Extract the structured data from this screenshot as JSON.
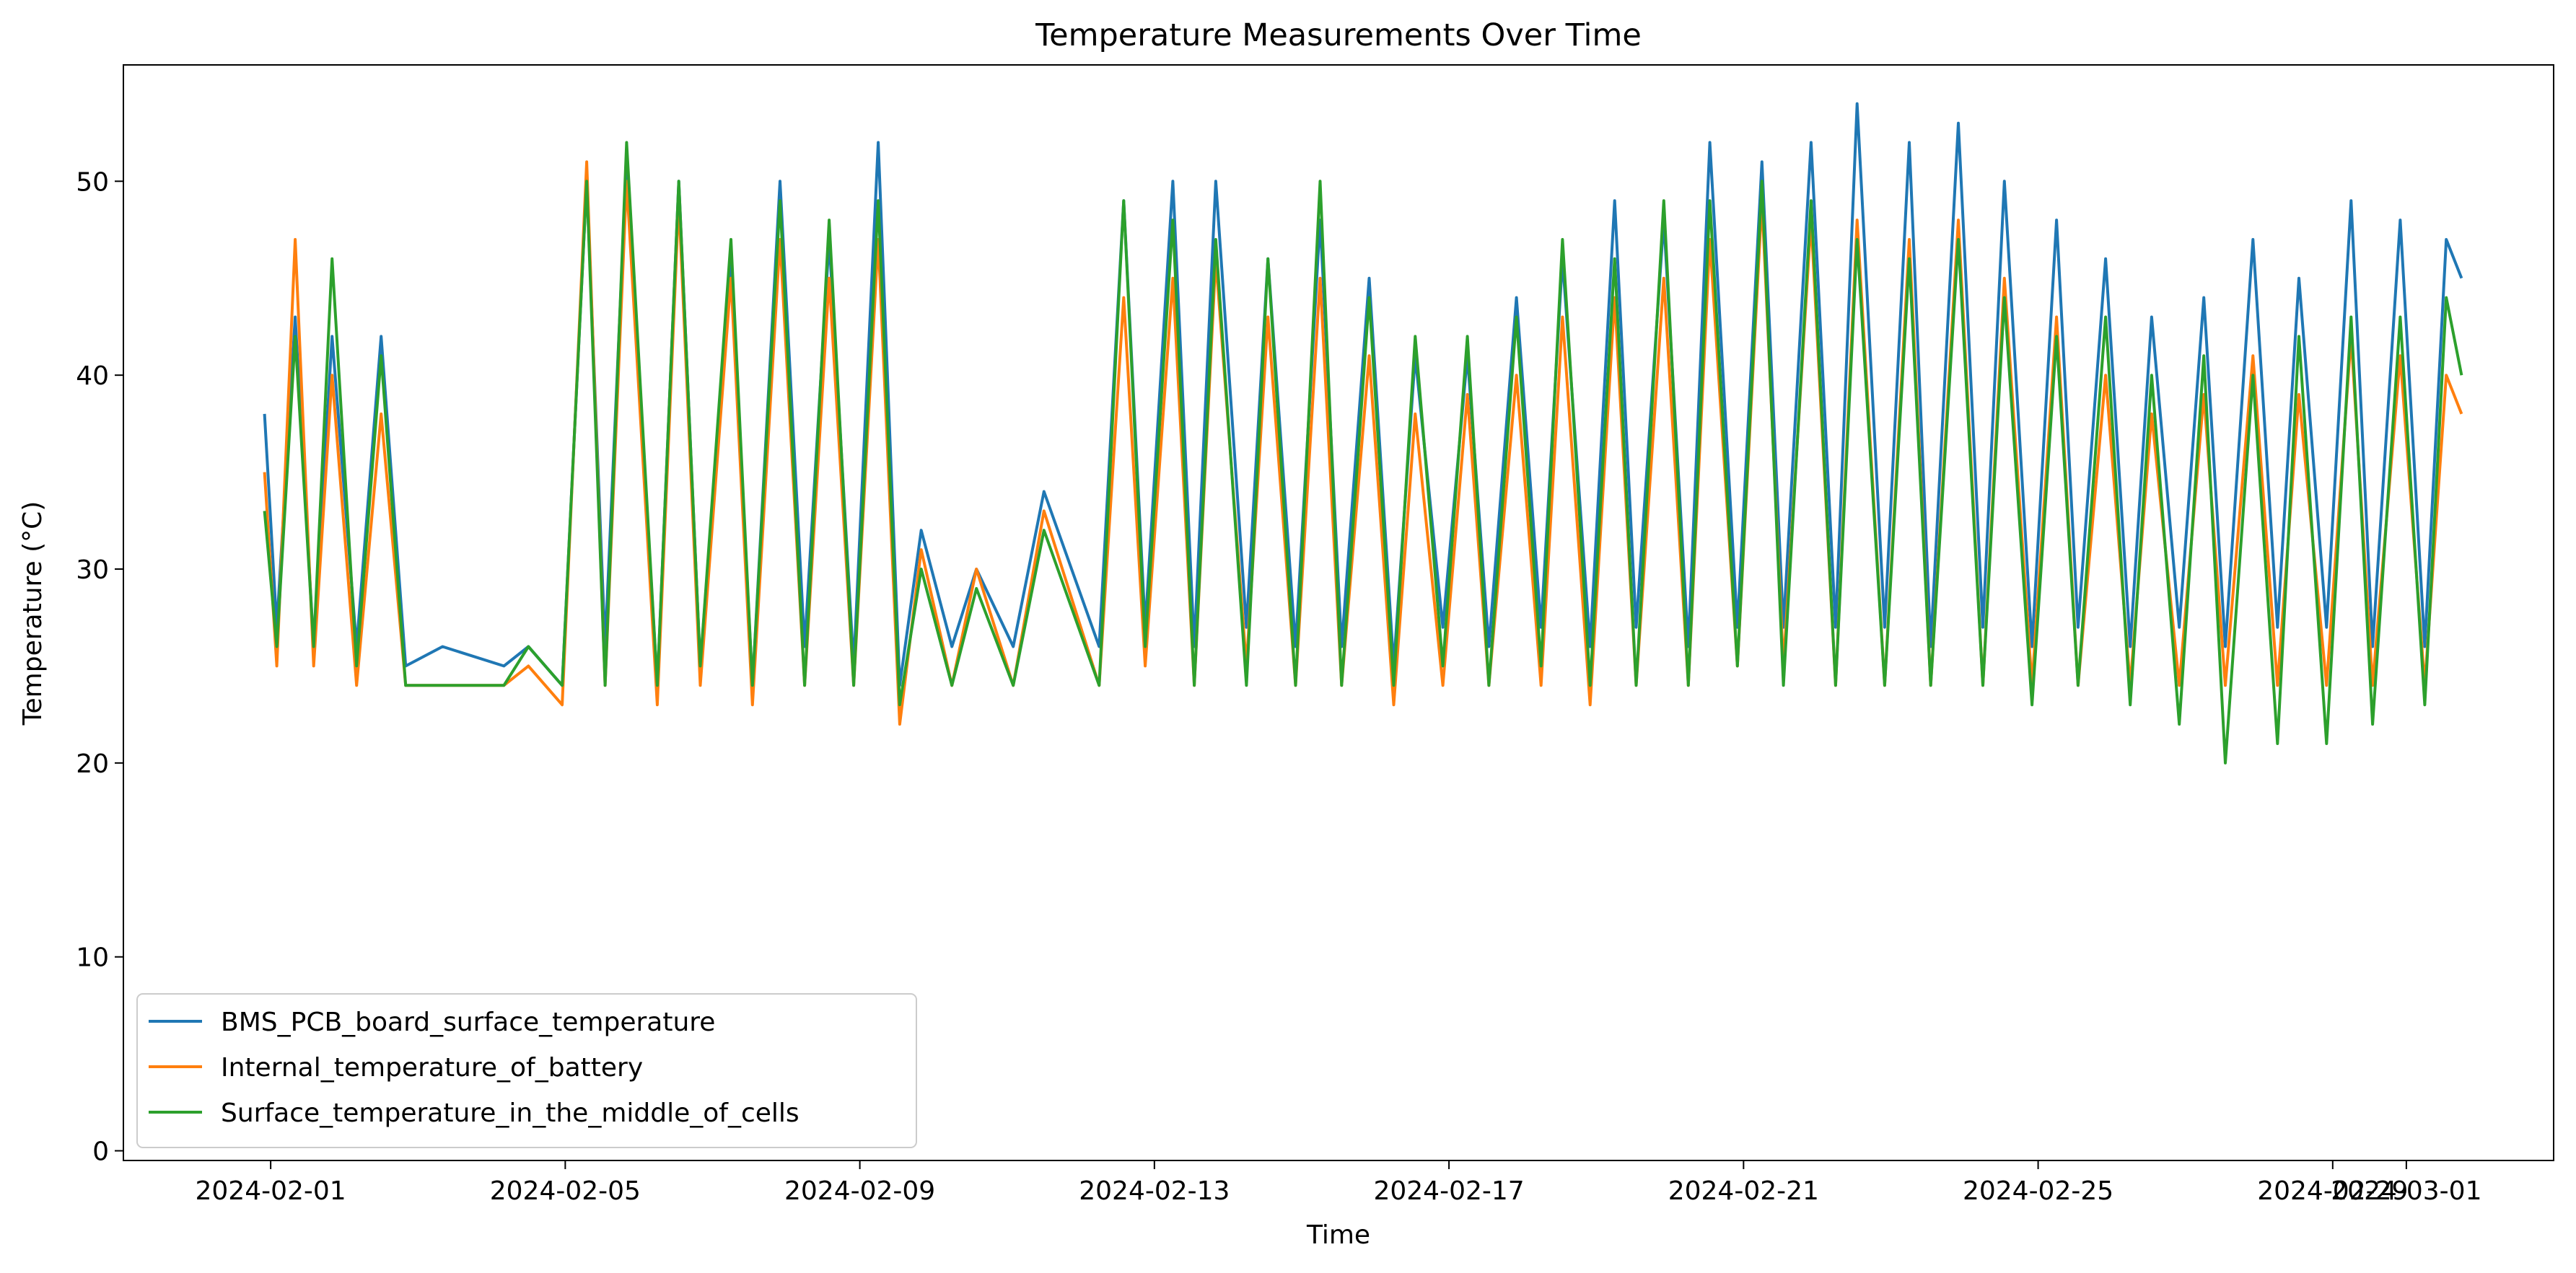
{
  "chart_data": {
    "type": "line",
    "title": "Temperature Measurements Over Time",
    "xlabel": "Time",
    "ylabel": "Temperature (°C)",
    "x_range": [
      "2024-01-30",
      "2024-03-03"
    ],
    "ylim": [
      -0.5,
      56
    ],
    "x_ticks": [
      {
        "date": "2024-02-01",
        "label": "2024-02-01"
      },
      {
        "date": "2024-02-05",
        "label": "2024-02-05"
      },
      {
        "date": "2024-02-09",
        "label": "2024-02-09"
      },
      {
        "date": "2024-02-13",
        "label": "2024-02-13"
      },
      {
        "date": "2024-02-17",
        "label": "2024-02-17"
      },
      {
        "date": "2024-02-21",
        "label": "2024-02-21"
      },
      {
        "date": "2024-02-25",
        "label": "2024-02-25"
      },
      {
        "date": "2024-02-29",
        "label": "2024-02-29"
      },
      {
        "date": "2024-03-01",
        "label": "2024-03-01"
      }
    ],
    "y_ticks": [
      0,
      10,
      20,
      30,
      40,
      50
    ],
    "grid": false,
    "legend_position": "lower-left",
    "colors": {
      "BMS_PCB_board_surface_temperature": "#1f77b4",
      "Internal_temperature_of_battery": "#ff7f0e",
      "Surface_temperature_in_the_middle_of_cells": "#2ca02c"
    },
    "series": [
      {
        "name": "BMS_PCB_board_surface_temperature",
        "x": [
          "2024-01-31 22:00",
          "2024-02-01 02:00",
          "2024-02-01 08:00",
          "2024-02-01 14:00",
          "2024-02-01 20:00",
          "2024-02-02 04:00",
          "2024-02-02 12:00",
          "2024-02-02 20:00",
          "2024-02-03 08:00",
          "2024-02-04 04:00",
          "2024-02-04 12:00",
          "2024-02-04 23:00",
          "2024-02-05 07:00",
          "2024-02-05 13:00",
          "2024-02-05 20:00",
          "2024-02-06 06:00",
          "2024-02-06 13:00",
          "2024-02-06 20:00",
          "2024-02-07 06:00",
          "2024-02-07 13:00",
          "2024-02-07 22:00",
          "2024-02-08 06:00",
          "2024-02-08 14:00",
          "2024-02-08 22:00",
          "2024-02-09 06:00",
          "2024-02-09 13:00",
          "2024-02-09 20:00",
          "2024-02-10 06:00",
          "2024-02-10 14:00",
          "2024-02-11 02:00",
          "2024-02-11 12:00",
          "2024-02-12 06:00",
          "2024-02-12 14:00",
          "2024-02-12 21:00",
          "2024-02-13 06:00",
          "2024-02-13 13:00",
          "2024-02-13 20:00",
          "2024-02-14 06:00",
          "2024-02-14 13:00",
          "2024-02-14 22:00",
          "2024-02-15 06:00",
          "2024-02-15 13:00",
          "2024-02-15 22:00",
          "2024-02-16 06:00",
          "2024-02-16 13:00",
          "2024-02-16 22:00",
          "2024-02-17 06:00",
          "2024-02-17 13:00",
          "2024-02-17 22:00",
          "2024-02-18 06:00",
          "2024-02-18 13:00",
          "2024-02-18 22:00",
          "2024-02-19 06:00",
          "2024-02-19 13:00",
          "2024-02-19 22:00",
          "2024-02-20 06:00",
          "2024-02-20 13:00",
          "2024-02-20 22:00",
          "2024-02-21 06:00",
          "2024-02-21 13:00",
          "2024-02-21 22:00",
          "2024-02-22 06:00",
          "2024-02-22 13:00",
          "2024-02-22 22:00",
          "2024-02-23 06:00",
          "2024-02-23 13:00",
          "2024-02-23 22:00",
          "2024-02-24 06:00",
          "2024-02-24 13:00",
          "2024-02-24 22:00",
          "2024-02-25 06:00",
          "2024-02-25 13:00",
          "2024-02-25 22:00",
          "2024-02-26 06:00",
          "2024-02-26 13:00",
          "2024-02-26 22:00",
          "2024-02-27 06:00",
          "2024-02-27 13:00",
          "2024-02-27 22:00",
          "2024-02-28 06:00",
          "2024-02-28 13:00",
          "2024-02-28 22:00",
          "2024-02-29 06:00",
          "2024-02-29 13:00",
          "2024-02-29 22:00",
          "2024-03-01 06:00",
          "2024-03-01 13:00",
          "2024-03-01 18:00"
        ],
        "y": [
          38,
          27,
          43,
          26,
          42,
          26,
          42,
          25,
          26,
          25,
          26,
          24,
          50,
          26,
          51,
          24,
          50,
          25,
          46,
          24,
          50,
          26,
          47,
          25,
          52,
          24,
          32,
          26,
          30,
          26,
          34,
          26,
          49,
          27,
          50,
          26,
          50,
          27,
          46,
          26,
          48,
          26,
          45,
          25,
          41,
          27,
          41,
          26,
          44,
          27,
          46,
          26,
          49,
          27,
          48,
          26,
          52,
          27,
          51,
          27,
          52,
          27,
          54,
          27,
          52,
          26,
          53,
          27,
          50,
          26,
          48,
          27,
          46,
          26,
          43,
          27,
          44,
          26,
          47,
          27,
          45,
          27,
          49,
          26,
          48,
          26,
          47,
          45
        ]
      },
      {
        "name": "Internal_temperature_of_battery",
        "x": [
          "2024-01-31 22:00",
          "2024-02-01 02:00",
          "2024-02-01 08:00",
          "2024-02-01 14:00",
          "2024-02-01 20:00",
          "2024-02-02 04:00",
          "2024-02-02 12:00",
          "2024-02-02 20:00",
          "2024-02-03 08:00",
          "2024-02-04 04:00",
          "2024-02-04 12:00",
          "2024-02-04 23:00",
          "2024-02-05 07:00",
          "2024-02-05 13:00",
          "2024-02-05 20:00",
          "2024-02-06 06:00",
          "2024-02-06 13:00",
          "2024-02-06 20:00",
          "2024-02-07 06:00",
          "2024-02-07 13:00",
          "2024-02-07 22:00",
          "2024-02-08 06:00",
          "2024-02-08 14:00",
          "2024-02-08 22:00",
          "2024-02-09 06:00",
          "2024-02-09 13:00",
          "2024-02-09 20:00",
          "2024-02-10 06:00",
          "2024-02-10 14:00",
          "2024-02-11 02:00",
          "2024-02-11 12:00",
          "2024-02-12 06:00",
          "2024-02-12 14:00",
          "2024-02-12 21:00",
          "2024-02-13 06:00",
          "2024-02-13 13:00",
          "2024-02-13 20:00",
          "2024-02-14 06:00",
          "2024-02-14 13:00",
          "2024-02-14 22:00",
          "2024-02-15 06:00",
          "2024-02-15 13:00",
          "2024-02-15 22:00",
          "2024-02-16 06:00",
          "2024-02-16 13:00",
          "2024-02-16 22:00",
          "2024-02-17 06:00",
          "2024-02-17 13:00",
          "2024-02-17 22:00",
          "2024-02-18 06:00",
          "2024-02-18 13:00",
          "2024-02-18 22:00",
          "2024-02-19 06:00",
          "2024-02-19 13:00",
          "2024-02-19 22:00",
          "2024-02-20 06:00",
          "2024-02-20 13:00",
          "2024-02-20 22:00",
          "2024-02-21 06:00",
          "2024-02-21 13:00",
          "2024-02-21 22:00",
          "2024-02-22 06:00",
          "2024-02-22 13:00",
          "2024-02-22 22:00",
          "2024-02-23 06:00",
          "2024-02-23 13:00",
          "2024-02-23 22:00",
          "2024-02-24 06:00",
          "2024-02-24 13:00",
          "2024-02-24 22:00",
          "2024-02-25 06:00",
          "2024-02-25 13:00",
          "2024-02-25 22:00",
          "2024-02-26 06:00",
          "2024-02-26 13:00",
          "2024-02-26 22:00",
          "2024-02-27 06:00",
          "2024-02-27 13:00",
          "2024-02-27 22:00",
          "2024-02-28 06:00",
          "2024-02-28 13:00",
          "2024-02-28 22:00",
          "2024-02-29 06:00",
          "2024-02-29 13:00",
          "2024-02-29 22:00",
          "2024-03-01 06:00",
          "2024-03-01 13:00",
          "2024-03-01 18:00"
        ],
        "y": [
          35,
          25,
          47,
          25,
          40,
          24,
          38,
          24,
          24,
          24,
          25,
          23,
          51,
          24,
          50,
          23,
          49,
          24,
          45,
          23,
          47,
          24,
          45,
          24,
          47,
          22,
          31,
          24,
          30,
          24,
          33,
          24,
          44,
          25,
          45,
          24,
          46,
          25,
          43,
          24,
          45,
          24,
          41,
          23,
          38,
          24,
          39,
          24,
          40,
          24,
          43,
          23,
          44,
          24,
          45,
          24,
          47,
          25,
          49,
          25,
          48,
          24,
          48,
          24,
          47,
          24,
          48,
          24,
          45,
          24,
          43,
          24,
          40,
          24,
          38,
          24,
          39,
          24,
          41,
          24,
          39,
          24,
          42,
          24,
          41,
          24,
          40,
          38
        ]
      },
      {
        "name": "Surface_temperature_in_the_middle_of_cells",
        "x": [
          "2024-01-31 22:00",
          "2024-02-01 02:00",
          "2024-02-01 08:00",
          "2024-02-01 14:00",
          "2024-02-01 20:00",
          "2024-02-02 04:00",
          "2024-02-02 12:00",
          "2024-02-02 20:00",
          "2024-02-03 08:00",
          "2024-02-04 04:00",
          "2024-02-04 12:00",
          "2024-02-04 23:00",
          "2024-02-05 07:00",
          "2024-02-05 13:00",
          "2024-02-05 20:00",
          "2024-02-06 06:00",
          "2024-02-06 13:00",
          "2024-02-06 20:00",
          "2024-02-07 06:00",
          "2024-02-07 13:00",
          "2024-02-07 22:00",
          "2024-02-08 06:00",
          "2024-02-08 14:00",
          "2024-02-08 22:00",
          "2024-02-09 06:00",
          "2024-02-09 13:00",
          "2024-02-09 20:00",
          "2024-02-10 06:00",
          "2024-02-10 14:00",
          "2024-02-11 02:00",
          "2024-02-11 12:00",
          "2024-02-12 06:00",
          "2024-02-12 14:00",
          "2024-02-12 21:00",
          "2024-02-13 06:00",
          "2024-02-13 13:00",
          "2024-02-13 20:00",
          "2024-02-14 06:00",
          "2024-02-14 13:00",
          "2024-02-14 22:00",
          "2024-02-15 06:00",
          "2024-02-15 13:00",
          "2024-02-15 22:00",
          "2024-02-16 06:00",
          "2024-02-16 13:00",
          "2024-02-16 22:00",
          "2024-02-17 06:00",
          "2024-02-17 13:00",
          "2024-02-17 22:00",
          "2024-02-18 06:00",
          "2024-02-18 13:00",
          "2024-02-18 22:00",
          "2024-02-19 06:00",
          "2024-02-19 13:00",
          "2024-02-19 22:00",
          "2024-02-20 06:00",
          "2024-02-20 13:00",
          "2024-02-20 22:00",
          "2024-02-21 06:00",
          "2024-02-21 13:00",
          "2024-02-21 22:00",
          "2024-02-22 06:00",
          "2024-02-22 13:00",
          "2024-02-22 22:00",
          "2024-02-23 06:00",
          "2024-02-23 13:00",
          "2024-02-23 22:00",
          "2024-02-24 06:00",
          "2024-02-24 13:00",
          "2024-02-24 22:00",
          "2024-02-25 06:00",
          "2024-02-25 13:00",
          "2024-02-25 22:00",
          "2024-02-26 06:00",
          "2024-02-26 13:00",
          "2024-02-26 22:00",
          "2024-02-27 06:00",
          "2024-02-27 13:00",
          "2024-02-27 22:00",
          "2024-02-28 06:00",
          "2024-02-28 13:00",
          "2024-02-28 22:00",
          "2024-02-29 06:00",
          "2024-02-29 13:00",
          "2024-02-29 22:00",
          "2024-03-01 06:00",
          "2024-03-01 13:00",
          "2024-03-01 18:00"
        ],
        "y": [
          33,
          26,
          42,
          26,
          46,
          25,
          41,
          24,
          24,
          24,
          26,
          24,
          50,
          24,
          52,
          24,
          50,
          25,
          47,
          24,
          49,
          24,
          48,
          24,
          49,
          23,
          30,
          24,
          29,
          24,
          32,
          24,
          49,
          26,
          48,
          24,
          47,
          24,
          46,
          24,
          50,
          24,
          44,
          24,
          42,
          25,
          42,
          24,
          43,
          25,
          47,
          24,
          46,
          24,
          49,
          24,
          49,
          25,
          50,
          24,
          49,
          24,
          47,
          24,
          46,
          24,
          47,
          24,
          44,
          23,
          42,
          24,
          43,
          23,
          40,
          22,
          41,
          20,
          40,
          21,
          42,
          21,
          43,
          22,
          43,
          23,
          44,
          40
        ]
      }
    ]
  }
}
